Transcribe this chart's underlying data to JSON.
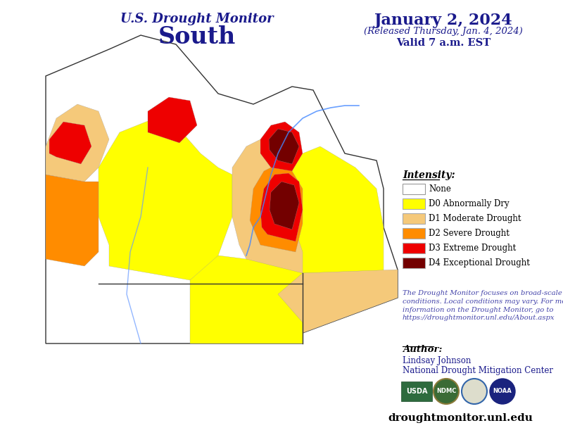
{
  "title_line1": "U.S. Drought Monitor",
  "title_line2": "South",
  "date_main": "January 2, 2024",
  "date_released": "(Released Thursday, Jan. 4, 2024)",
  "date_valid": "Valid 7 a.m. EST",
  "legend_title": "Intensity:",
  "legend_items": [
    {
      "label": "None",
      "color": "#FFFFFF",
      "edgecolor": "#999999"
    },
    {
      "label": "D0 Abnormally Dry",
      "color": "#FFFF00",
      "edgecolor": "#AAAAAA"
    },
    {
      "label": "D1 Moderate Drought",
      "color": "#F5C97A",
      "edgecolor": "#AAAAAA"
    },
    {
      "label": "D2 Severe Drought",
      "color": "#FF8C00",
      "edgecolor": "#AAAAAA"
    },
    {
      "label": "D3 Extreme Drought",
      "color": "#EE0000",
      "edgecolor": "#AAAAAA"
    },
    {
      "label": "D4 Exceptional Drought",
      "color": "#730000",
      "edgecolor": "#AAAAAA"
    }
  ],
  "disclaimer_text": "The Drought Monitor focuses on broad-scale\nconditions. Local conditions may vary. For more\ninformation on the Drought Monitor, go to\nhttps://droughtmonitor.unl.edu/About.aspx",
  "author_label": "Author:",
  "author_name": "Lindsay Johnson",
  "author_org": "National Drought Mitigation Center",
  "website": "droughtmonitor.unl.edu",
  "bg_color": "#FFFFFF",
  "title_color": "#1A1A8C",
  "date_color": "#1A1A8C"
}
